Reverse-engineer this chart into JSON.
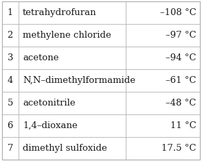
{
  "rows": [
    {
      "num": "1",
      "name": "tetrahydrofuran",
      "temp": "–108 °C"
    },
    {
      "num": "2",
      "name": "methylene chloride",
      "temp": "–97 °C"
    },
    {
      "num": "3",
      "name": "acetone",
      "temp": "–94 °C"
    },
    {
      "num": "4",
      "name": "N,N–dimethylformamide",
      "temp": "–61 °C"
    },
    {
      "num": "5",
      "name": "acetonitrile",
      "temp": "–48 °C"
    },
    {
      "num": "6",
      "name": "1,4–dioxane",
      "temp": "11 °C"
    },
    {
      "num": "7",
      "name": "dimethyl sulfoxide",
      "temp": "17.5 °C"
    }
  ],
  "text_color": "#1a1a1a",
  "border_color": "#b0b0b0",
  "bg_color": "#ffffff",
  "font_size": 9.5,
  "font_family": "DejaVu Serif"
}
